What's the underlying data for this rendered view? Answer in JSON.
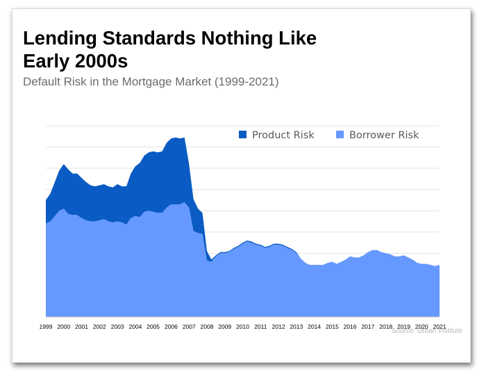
{
  "header": {
    "title_line1": "Lending Standards Nothing Like",
    "title_line2": "Early 2000s",
    "subtitle": "Default Risk in the Mortgage Market (1999-2021)"
  },
  "footer": {
    "source": "Source: Urban Institute"
  },
  "chart_data": {
    "type": "area",
    "stacked": true,
    "title": "Lending Standards Nothing Like Early 2000s",
    "subtitle": "Default Risk in the Mortgage Market (1999-2021)",
    "xlabel": "",
    "ylabel": "",
    "x_ticks": [
      "1999",
      "2000",
      "2001",
      "2002",
      "2003",
      "2004",
      "2005",
      "2006",
      "2007",
      "2008",
      "2009",
      "2010",
      "2011",
      "2012",
      "2013",
      "2014",
      "2015",
      "2016",
      "2017",
      "2018",
      "2019",
      "2020",
      "2021"
    ],
    "xlim": [
      1999,
      2021
    ],
    "ylim": [
      0,
      18
    ],
    "y_gridlines": [
      2,
      4,
      6,
      8,
      10,
      12,
      14,
      16,
      18
    ],
    "y_tick_labels_shown": false,
    "grid": true,
    "legend_position": "top-right",
    "colors": {
      "Product Risk": "#0a5bc4",
      "Borrower Risk": "#6699ff"
    },
    "x": [
      1999.0,
      1999.25,
      1999.5,
      1999.75,
      2000.0,
      2000.25,
      2000.5,
      2000.75,
      2001.0,
      2001.25,
      2001.5,
      2001.75,
      2002.0,
      2002.25,
      2002.5,
      2002.75,
      2003.0,
      2003.25,
      2003.5,
      2003.75,
      2004.0,
      2004.25,
      2004.5,
      2004.75,
      2005.0,
      2005.25,
      2005.5,
      2005.75,
      2006.0,
      2006.25,
      2006.5,
      2006.75,
      2007.0,
      2007.25,
      2007.5,
      2007.75,
      2008.0,
      2008.25,
      2008.5,
      2008.75,
      2009.0,
      2009.25,
      2009.5,
      2009.75,
      2010.0,
      2010.25,
      2010.5,
      2010.75,
      2011.0,
      2011.25,
      2011.5,
      2011.75,
      2012.0,
      2012.25,
      2012.5,
      2012.75,
      2013.0,
      2013.25,
      2013.5,
      2013.75,
      2014.0,
      2014.25,
      2014.5,
      2014.75,
      2015.0,
      2015.25,
      2015.5,
      2015.75,
      2016.0,
      2016.25,
      2016.5,
      2016.75,
      2017.0,
      2017.25,
      2017.5,
      2017.75,
      2018.0,
      2018.25,
      2018.5,
      2018.75,
      2019.0,
      2019.25,
      2019.5,
      2019.75,
      2020.0,
      2020.25,
      2020.5,
      2020.75,
      2021.0
    ],
    "series": [
      {
        "name": "Borrower Risk",
        "values": [
          8.8,
          9.0,
          9.5,
          10.0,
          10.2,
          9.7,
          9.6,
          9.6,
          9.3,
          9.1,
          9.0,
          9.0,
          9.1,
          9.2,
          9.0,
          8.9,
          9.0,
          8.9,
          8.7,
          9.3,
          9.5,
          9.4,
          9.9,
          10.0,
          9.9,
          9.8,
          9.8,
          10.3,
          10.6,
          10.6,
          10.6,
          10.8,
          10.3,
          8.1,
          7.9,
          7.8,
          5.3,
          5.2,
          5.7,
          6.0,
          6.0,
          6.1,
          6.4,
          6.6,
          6.9,
          7.1,
          7.0,
          6.8,
          6.7,
          6.5,
          6.6,
          6.8,
          6.8,
          6.7,
          6.5,
          6.3,
          6.0,
          5.5,
          5.1,
          4.9,
          4.9,
          4.9,
          4.9,
          5.1,
          5.2,
          5.0,
          5.2,
          5.4,
          5.7,
          5.6,
          5.6,
          5.8,
          6.1,
          6.3,
          6.3,
          6.1,
          6.0,
          5.9,
          5.7,
          5.7,
          5.8,
          5.6,
          5.4,
          5.1,
          5.0,
          5.0,
          4.9,
          4.8,
          4.9
        ]
      },
      {
        "name": "Product Risk",
        "values": [
          2.2,
          2.6,
          3.2,
          3.8,
          4.2,
          4.2,
          3.9,
          3.9,
          3.8,
          3.6,
          3.4,
          3.3,
          3.3,
          3.3,
          3.3,
          3.3,
          3.5,
          3.4,
          3.6,
          4.2,
          4.7,
          5.1,
          5.3,
          5.5,
          5.7,
          5.7,
          5.8,
          6.1,
          6.2,
          6.3,
          6.2,
          6.1,
          4.1,
          3.0,
          2.3,
          2.0,
          0.9,
          0.2,
          0.1,
          0.1,
          0.1,
          0.1,
          0.1,
          0.1,
          0.1,
          0.1,
          0.1,
          0.1,
          0.1,
          0.1,
          0.1,
          0.1,
          0.1,
          0.1,
          0.1,
          0.1,
          0.1,
          0.0,
          0.0,
          0.0,
          0.0,
          0.0,
          0.0,
          0.0,
          0.0,
          0.0,
          0.0,
          0.0,
          0.0,
          0.0,
          0.0,
          0.0,
          0.0,
          0.0,
          0.0,
          0.0,
          0.0,
          0.0,
          0.0,
          0.0,
          0.0,
          0.0,
          0.0,
          0.0,
          0.0,
          0.0,
          0.0,
          0.0,
          0.0
        ]
      }
    ],
    "legend": [
      "Product Risk",
      "Borrower Risk"
    ]
  }
}
